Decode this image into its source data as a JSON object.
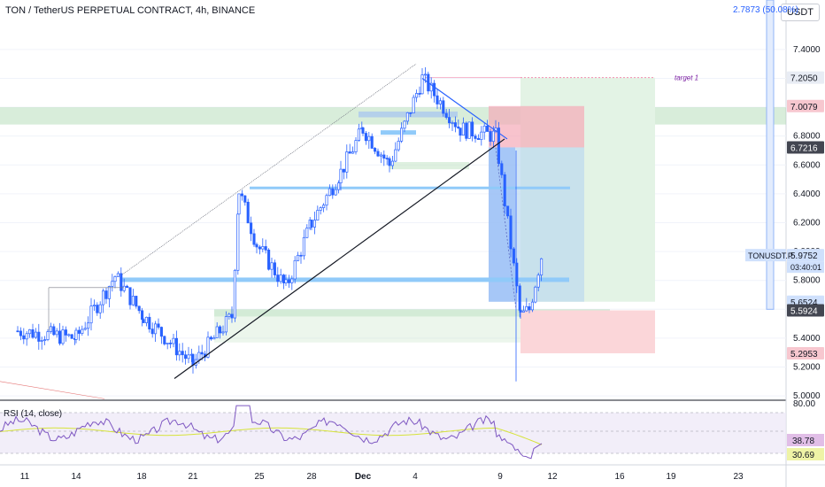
{
  "header": {
    "title": "TON / TetherUS PERPETUAL CONTRACT, 4h, BINANCE",
    "currency_button": "USDT",
    "top_measure": "2.7873 (50.08%)"
  },
  "rsi": {
    "label": "RSI (14, close)",
    "levels": [
      "80.00"
    ],
    "current_value": "38.78",
    "ma_value": "30.69"
  },
  "annotations": {
    "target": "target 1",
    "symbol_tag": "TONUSDT.P",
    "countdown": "03:40:01"
  },
  "price_tags": [
    {
      "text": "7.2050",
      "value": 7.205,
      "bg": "#e8ecf4",
      "fg": "#131722"
    },
    {
      "text": "7.0079",
      "value": 7.0079,
      "bg": "#f7c7cf",
      "fg": "#131722"
    },
    {
      "text": "6.7216",
      "value": 6.7216,
      "bg": "#434651",
      "fg": "#ffffff"
    },
    {
      "text": "5.9752",
      "value": 5.9752,
      "bg": "#cfe0fc",
      "fg": "#131722"
    },
    {
      "text": "5.6524",
      "value": 5.6524,
      "bg": "#cfe0fc",
      "fg": "#131722"
    },
    {
      "text": "5.5924",
      "value": 5.5924,
      "bg": "#434651",
      "fg": "#ffffff"
    },
    {
      "text": "5.2953",
      "value": 5.2953,
      "bg": "#f7c7cf",
      "fg": "#131722"
    }
  ],
  "colors": {
    "up": "#2962ff",
    "down": "#2962ff",
    "rsi_line": "#7e57c2",
    "rsi_ma": "#d6e33a",
    "rsi_band": "#ede7f6",
    "profit_zone": "#e3f3e5",
    "loss_zone": "#fbd6d9",
    "accent": "#2962ff"
  },
  "chart_data": {
    "type": "candlestick",
    "title": "TON / TetherUS PERPETUAL CONTRACT, 4h, BINANCE",
    "y_ticks": [
      "7.4000",
      "7.2000",
      "7.0000",
      "6.8000",
      "6.6000",
      "6.4000",
      "6.2000",
      "6.0000",
      "5.8000",
      "5.6000",
      "5.4000",
      "5.2000",
      "5.0000"
    ],
    "y_range": [
      4.97,
      7.62
    ],
    "x_ticks": [
      "11",
      "14",
      "18",
      "21",
      "25",
      "28",
      "Dec",
      "4",
      "9",
      "12",
      "16",
      "19",
      "23"
    ],
    "price_points": [
      {
        "x": "11",
        "price": 5.45
      },
      {
        "x": "14",
        "price": 5.4
      },
      {
        "x": "16",
        "price": 5.83
      },
      {
        "x": "18",
        "price": 5.55
      },
      {
        "x": "21",
        "price": 5.22
      },
      {
        "x": "23",
        "price": 5.55
      },
      {
        "x": "24",
        "price": 6.42
      },
      {
        "x": "25",
        "price": 6.05
      },
      {
        "x": "27",
        "price": 5.75
      },
      {
        "x": "28",
        "price": 6.2
      },
      {
        "x": "30",
        "price": 6.55
      },
      {
        "x": "Dec",
        "price": 6.85
      },
      {
        "x": "3",
        "price": 6.6
      },
      {
        "x": "4",
        "price": 7.2
      },
      {
        "x": "6",
        "price": 6.85
      },
      {
        "x": "8",
        "price": 6.8
      },
      {
        "x": "9",
        "price": 5.55
      },
      {
        "x": "10",
        "price": 5.6
      },
      {
        "x": "11",
        "price": 5.98
      }
    ]
  }
}
